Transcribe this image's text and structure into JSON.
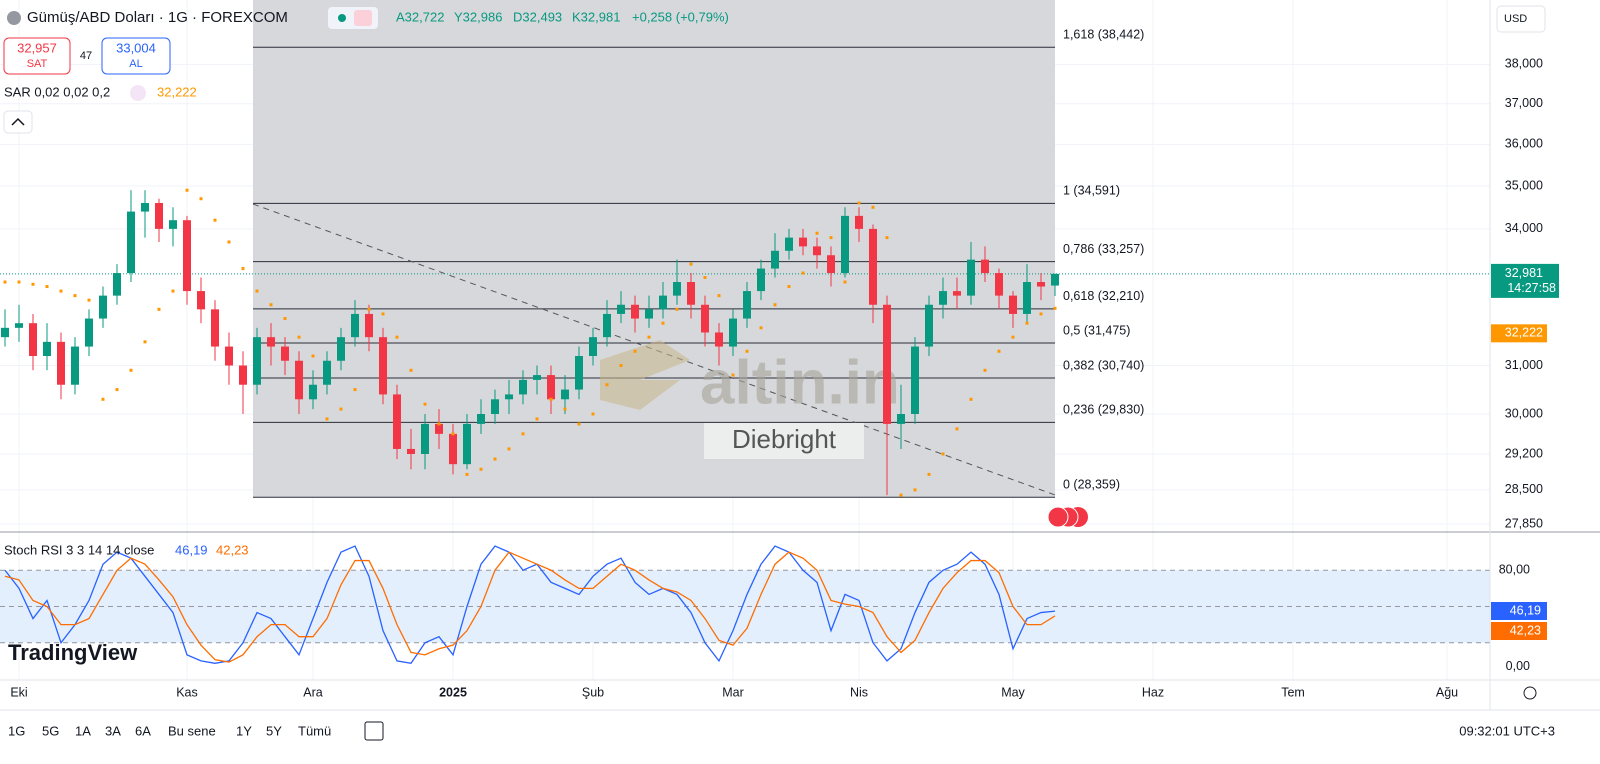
{
  "header": {
    "symbol": "Gümüş/ABD Doları · 1G · FOREXCOM",
    "open": "A32,722",
    "high": "Y32,986",
    "low": "D32,493",
    "close": "K32,981",
    "change": "+0,258 (+0,79%)",
    "sell_price": "32,957",
    "sell_label": "SAT",
    "spread": "47",
    "buy_price": "33,004",
    "buy_label": "AL",
    "indicator": "SAR 0,02 0,02 0,2",
    "indicator_value": "32,222",
    "currency": "USD"
  },
  "watermarks": {
    "brand": "altin.in",
    "author": "Diebright",
    "platform": "TradingView"
  },
  "toolbar": {
    "ranges": [
      "1G",
      "5G",
      "1A",
      "3A",
      "6A",
      "Bu sene",
      "1Y",
      "5Y",
      "Tümü"
    ],
    "clock": "09:32:01 UTC+3"
  },
  "chart_data": {
    "type": "candlestick",
    "categories": [
      null,
      "Eki",
      null,
      null,
      null,
      null,
      null,
      null,
      null,
      null,
      null,
      null,
      null,
      "Kas",
      null,
      null,
      null,
      null,
      null,
      null,
      null,
      null,
      "Ara",
      null,
      null,
      null,
      null,
      null,
      null,
      null,
      null,
      null,
      "2025",
      null,
      null,
      null,
      null,
      null,
      null,
      null,
      null,
      null,
      "Şub",
      null,
      null,
      null,
      null,
      null,
      null,
      null,
      null,
      null,
      "Mar",
      null,
      null,
      null,
      null,
      null,
      null,
      null,
      null,
      "Nis",
      null,
      null,
      null,
      null,
      null,
      null,
      null,
      null,
      null,
      null,
      "May",
      null,
      null,
      null,
      null,
      null,
      null,
      null,
      null,
      null,
      "Haz",
      null,
      null,
      null,
      null,
      null,
      null,
      null,
      null,
      null,
      "Tem",
      null,
      null,
      null,
      null,
      null,
      null,
      null,
      null,
      null,
      null,
      "Ağu"
    ],
    "candles": [
      [
        31.6,
        32.2,
        31.4,
        31.8
      ],
      [
        31.8,
        32.3,
        31.5,
        31.9
      ],
      [
        31.9,
        32.1,
        30.9,
        31.2
      ],
      [
        31.2,
        31.9,
        30.9,
        31.5
      ],
      [
        31.5,
        31.7,
        30.3,
        30.6
      ],
      [
        30.6,
        31.6,
        30.4,
        31.4
      ],
      [
        31.4,
        32.2,
        31.2,
        32.0
      ],
      [
        32.0,
        32.7,
        31.8,
        32.5
      ],
      [
        32.5,
        33.2,
        32.3,
        33.0
      ],
      [
        33.0,
        34.9,
        32.8,
        34.4
      ],
      [
        34.4,
        34.9,
        33.8,
        34.6
      ],
      [
        34.6,
        34.7,
        33.7,
        34.0
      ],
      [
        34.0,
        34.5,
        33.6,
        34.2
      ],
      [
        34.2,
        34.3,
        32.3,
        32.6
      ],
      [
        32.6,
        32.9,
        31.9,
        32.2
      ],
      [
        32.2,
        32.4,
        31.1,
        31.4
      ],
      [
        31.4,
        31.7,
        30.6,
        31.0
      ],
      [
        31.0,
        31.3,
        30.0,
        30.6
      ],
      [
        30.6,
        31.8,
        30.4,
        31.6
      ],
      [
        31.6,
        31.9,
        31.0,
        31.4
      ],
      [
        31.4,
        31.6,
        30.8,
        31.1
      ],
      [
        31.1,
        31.3,
        30.0,
        30.3
      ],
      [
        30.3,
        30.9,
        30.1,
        30.6
      ],
      [
        30.6,
        31.3,
        30.4,
        31.1
      ],
      [
        31.1,
        31.8,
        30.9,
        31.6
      ],
      [
        31.6,
        32.4,
        31.4,
        32.1
      ],
      [
        32.1,
        32.3,
        31.3,
        31.6
      ],
      [
        31.6,
        31.8,
        30.2,
        30.4
      ],
      [
        30.4,
        30.6,
        29.1,
        29.3
      ],
      [
        29.3,
        29.7,
        28.9,
        29.2
      ],
      [
        29.2,
        30.0,
        28.9,
        29.8
      ],
      [
        29.8,
        30.1,
        29.3,
        29.6
      ],
      [
        29.6,
        29.8,
        28.8,
        29.0
      ],
      [
        29.0,
        30.0,
        28.9,
        29.8
      ],
      [
        29.8,
        30.3,
        29.6,
        30.0
      ],
      [
        30.0,
        30.5,
        29.8,
        30.3
      ],
      [
        30.3,
        30.7,
        30.0,
        30.4
      ],
      [
        30.4,
        30.9,
        30.2,
        30.7
      ],
      [
        30.7,
        31.0,
        30.4,
        30.8
      ],
      [
        30.8,
        31.0,
        30.0,
        30.3
      ],
      [
        30.3,
        30.8,
        30.0,
        30.5
      ],
      [
        30.5,
        31.4,
        30.3,
        31.2
      ],
      [
        31.2,
        31.8,
        31.0,
        31.6
      ],
      [
        31.6,
        32.4,
        31.4,
        32.1
      ],
      [
        32.1,
        32.6,
        31.9,
        32.3
      ],
      [
        32.3,
        32.5,
        31.7,
        32.0
      ],
      [
        32.0,
        32.5,
        31.8,
        32.2
      ],
      [
        32.2,
        32.8,
        32.0,
        32.5
      ],
      [
        32.5,
        33.3,
        32.3,
        32.8
      ],
      [
        32.8,
        33.0,
        32.0,
        32.3
      ],
      [
        32.3,
        32.5,
        31.4,
        31.7
      ],
      [
        31.7,
        31.9,
        31.0,
        31.4
      ],
      [
        31.4,
        32.2,
        31.2,
        32.0
      ],
      [
        32.0,
        32.8,
        31.8,
        32.6
      ],
      [
        32.6,
        33.3,
        32.4,
        33.1
      ],
      [
        33.1,
        33.9,
        32.9,
        33.5
      ],
      [
        33.5,
        34.0,
        33.3,
        33.8
      ],
      [
        33.8,
        34.0,
        33.4,
        33.6
      ],
      [
        33.6,
        33.8,
        33.1,
        33.4
      ],
      [
        33.4,
        33.6,
        32.7,
        33.0
      ],
      [
        33.0,
        34.5,
        32.9,
        34.3
      ],
      [
        34.3,
        34.5,
        33.7,
        34.0
      ],
      [
        34.0,
        34.1,
        31.9,
        32.3
      ],
      [
        32.3,
        32.5,
        28.4,
        29.8
      ],
      [
        29.8,
        30.6,
        29.3,
        30.0
      ],
      [
        30.0,
        31.6,
        29.8,
        31.4
      ],
      [
        31.4,
        32.5,
        31.2,
        32.3
      ],
      [
        32.3,
        32.9,
        32.0,
        32.6
      ],
      [
        32.6,
        32.9,
        32.2,
        32.5
      ],
      [
        32.5,
        33.7,
        32.3,
        33.3
      ],
      [
        33.3,
        33.6,
        32.8,
        33.0
      ],
      [
        33.0,
        33.1,
        32.2,
        32.5
      ],
      [
        32.5,
        32.6,
        31.8,
        32.1
      ],
      [
        32.1,
        33.2,
        31.9,
        32.8
      ],
      [
        32.8,
        33.0,
        32.4,
        32.7
      ],
      [
        32.722,
        32.986,
        32.493,
        32.981
      ],
      null,
      null,
      null,
      null,
      null,
      null,
      null,
      null,
      null,
      null,
      null,
      null,
      null,
      null,
      null,
      null,
      null,
      null,
      null,
      null,
      null,
      null,
      null,
      null,
      null,
      null,
      null,
      null
    ],
    "up_color": "#089981",
    "down_color": "#f23645",
    "ylim": [
      27.7,
      39.69
    ],
    "log_scale": true,
    "yticks": [
      {
        "value": 38,
        "label": "38,000"
      },
      {
        "value": 37,
        "label": "37,000"
      },
      {
        "value": 36,
        "label": "36,000"
      },
      {
        "value": 35,
        "label": "35,000"
      },
      {
        "value": 34,
        "label": "34,000"
      },
      {
        "value": 31,
        "label": "31,000"
      },
      {
        "value": 30,
        "label": "30,000"
      },
      {
        "value": 29.2,
        "label": "29,200"
      },
      {
        "value": 28.5,
        "label": "28,500"
      },
      {
        "value": 27.85,
        "label": "27,850"
      }
    ],
    "grid": true,
    "last_price": {
      "value": 32.981,
      "label": "32,981"
    },
    "countdown": "14:27:58",
    "sar": {
      "color": "#ff9800",
      "last": {
        "value": 32.222,
        "label": "32,222"
      },
      "values": [
        32.8,
        32.8,
        32.75,
        32.7,
        32.6,
        32.5,
        32.4,
        30.3,
        30.5,
        30.9,
        31.5,
        32.2,
        32.6,
        34.9,
        34.7,
        34.2,
        33.7,
        33.1,
        32.6,
        32.3,
        32.0,
        31.6,
        31.2,
        29.9,
        30.1,
        30.5,
        32.2,
        32.1,
        31.6,
        30.9,
        30.2,
        29.8,
        29.6,
        28.8,
        28.9,
        29.1,
        29.3,
        29.6,
        29.9,
        30.3,
        30.1,
        29.8,
        30.0,
        30.6,
        31.0,
        31.3,
        31.6,
        31.9,
        32.2,
        33.2,
        32.9,
        32.5,
        30.8,
        31.3,
        31.8,
        32.3,
        32.7,
        33.0,
        33.9,
        33.8,
        32.8,
        34.6,
        34.5,
        33.8,
        28.4,
        28.5,
        28.8,
        29.2,
        29.7,
        30.3,
        30.9,
        31.3,
        31.6,
        31.9,
        32.1,
        32.222,
        null,
        null,
        null,
        null,
        null,
        null,
        null,
        null,
        null,
        null,
        null,
        null,
        null,
        null,
        null,
        null,
        null,
        null,
        null,
        null,
        null,
        null,
        null,
        null,
        null,
        null,
        null,
        null
      ]
    },
    "fib_levels": [
      {
        "value": 38.442,
        "label": "1,618 (38,442)"
      },
      {
        "value": 34.591,
        "label": "1 (34,591)"
      },
      {
        "value": 33.257,
        "label": "0,786 (33,257)"
      },
      {
        "value": 32.21,
        "label": "0,618 (32,210)"
      },
      {
        "value": 31.475,
        "label": "0,5 (31,475)"
      },
      {
        "value": 30.74,
        "label": "0,382 (30,740)"
      },
      {
        "value": 29.83,
        "label": "0,236 (29,830)"
      },
      {
        "value": 28.359,
        "label": "0 (28,359)"
      }
    ],
    "stoch": {
      "title": "Stoch RSI 3 3 14 14 close",
      "ylim": [
        -10,
        110
      ],
      "yticks": [
        {
          "value": 80,
          "label": "80,00"
        },
        {
          "value": 0,
          "label": "0,00"
        }
      ],
      "hlines": [
        20,
        50,
        80
      ],
      "band_color": "#e3effd",
      "series": [
        {
          "color": "#2962ff",
          "value_label": "46,19",
          "values": [
            80,
            65,
            40,
            55,
            20,
            35,
            55,
            85,
            95,
            90,
            75,
            60,
            45,
            10,
            5,
            3,
            5,
            20,
            45,
            40,
            25,
            10,
            40,
            70,
            95,
            100,
            75,
            30,
            5,
            3,
            20,
            25,
            10,
            50,
            85,
            100,
            95,
            80,
            85,
            70,
            65,
            60,
            75,
            85,
            90,
            70,
            60,
            65,
            60,
            45,
            20,
            5,
            30,
            60,
            85,
            100,
            95,
            80,
            70,
            30,
            60,
            55,
            20,
            5,
            15,
            45,
            70,
            80,
            85,
            95,
            85,
            60,
            15,
            40,
            45,
            46.19,
            null,
            null,
            null,
            null,
            null,
            null,
            null,
            null,
            null,
            null,
            null,
            null,
            null,
            null,
            null,
            null,
            null,
            null,
            null,
            null,
            null,
            null,
            null,
            null,
            null,
            null,
            null,
            null
          ]
        },
        {
          "color": "#ff6d00",
          "value_label": "42,23",
          "values": [
            75,
            72,
            55,
            50,
            35,
            35,
            40,
            60,
            80,
            90,
            85,
            72,
            58,
            35,
            18,
            6,
            4,
            10,
            25,
            35,
            35,
            25,
            25,
            40,
            68,
            88,
            88,
            65,
            35,
            12,
            10,
            15,
            18,
            30,
            50,
            80,
            95,
            90,
            85,
            80,
            72,
            65,
            65,
            75,
            85,
            80,
            72,
            65,
            62,
            55,
            40,
            22,
            18,
            32,
            60,
            85,
            95,
            90,
            80,
            55,
            52,
            50,
            45,
            25,
            12,
            22,
            45,
            65,
            78,
            88,
            88,
            78,
            50,
            35,
            35,
            42.23,
            null,
            null,
            null,
            null,
            null,
            null,
            null,
            null,
            null,
            null,
            null,
            null,
            null,
            null,
            null,
            null,
            null,
            null,
            null,
            null,
            null,
            null,
            null,
            null,
            null,
            null,
            null,
            null
          ]
        }
      ]
    }
  }
}
